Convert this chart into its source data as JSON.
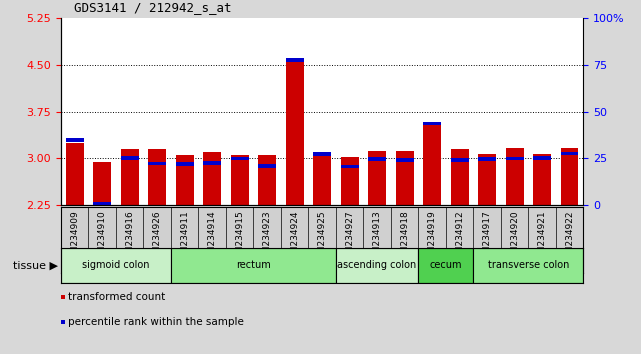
{
  "title": "GDS3141 / 212942_s_at",
  "samples": [
    "GSM234909",
    "GSM234910",
    "GSM234916",
    "GSM234926",
    "GSM234911",
    "GSM234914",
    "GSM234915",
    "GSM234923",
    "GSM234924",
    "GSM234925",
    "GSM234927",
    "GSM234913",
    "GSM234918",
    "GSM234919",
    "GSM234912",
    "GSM234917",
    "GSM234920",
    "GSM234921",
    "GSM234922"
  ],
  "red_values": [
    3.25,
    2.95,
    3.15,
    3.15,
    3.05,
    3.1,
    3.05,
    3.05,
    4.55,
    3.1,
    3.03,
    3.12,
    3.12,
    3.58,
    3.15,
    3.07,
    3.17,
    3.07,
    3.17
  ],
  "blue_values": [
    3.3,
    2.27,
    3.01,
    2.92,
    2.91,
    2.93,
    3.0,
    2.88,
    4.57,
    3.07,
    2.87,
    2.99,
    2.97,
    3.56,
    2.97,
    2.99,
    3.0,
    3.01,
    3.08
  ],
  "ymin": 2.25,
  "ymax": 5.25,
  "yticks_left": [
    2.25,
    3.0,
    3.75,
    4.5,
    5.25
  ],
  "yticks_right": [
    0,
    25,
    50,
    75,
    100
  ],
  "grid_lines": [
    3.0,
    3.75,
    4.5
  ],
  "tissue_groups": [
    {
      "label": "sigmoid colon",
      "start": 0,
      "end": 4,
      "color": "#c8f0c8"
    },
    {
      "label": "rectum",
      "start": 4,
      "end": 10,
      "color": "#90e890"
    },
    {
      "label": "ascending colon",
      "start": 10,
      "end": 13,
      "color": "#c8f0c8"
    },
    {
      "label": "cecum",
      "start": 13,
      "end": 15,
      "color": "#50d050"
    },
    {
      "label": "transverse colon",
      "start": 15,
      "end": 19,
      "color": "#90e890"
    }
  ],
  "bar_color": "#cc0000",
  "dot_color": "#0000cc",
  "bg_color": "#d8d8d8",
  "plot_bg": "#ffffff",
  "tick_bg": "#d0d0d0",
  "legend_items": [
    {
      "color": "#cc0000",
      "label": "transformed count"
    },
    {
      "color": "#0000cc",
      "label": "percentile rank within the sample"
    }
  ]
}
